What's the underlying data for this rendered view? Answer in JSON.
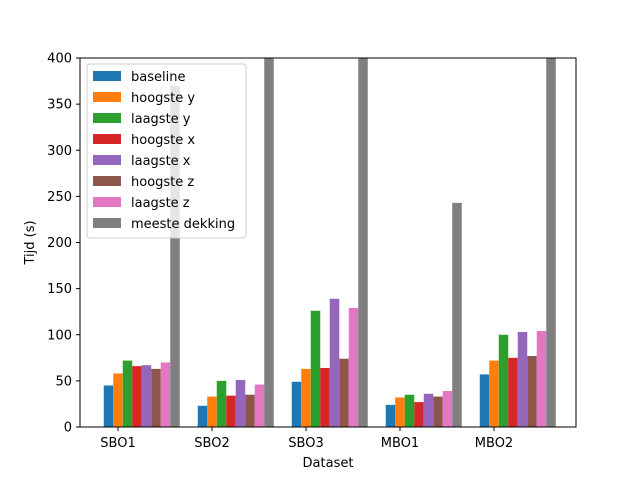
{
  "chart_data": {
    "type": "bar",
    "categories": [
      "SBO1",
      "SBO2",
      "SBO3",
      "MBO1",
      "MBO2"
    ],
    "series": [
      {
        "name": "baseline",
        "color": "#1f77b4",
        "values": [
          45,
          23,
          49,
          24,
          57
        ]
      },
      {
        "name": "hoogste y",
        "color": "#ff7f0e",
        "values": [
          58,
          33,
          63,
          32,
          72
        ]
      },
      {
        "name": "laagste y",
        "color": "#2ca02c",
        "values": [
          72,
          50,
          126,
          35,
          100
        ]
      },
      {
        "name": "hoogste x",
        "color": "#d62728",
        "values": [
          66,
          34,
          64,
          27,
          75
        ]
      },
      {
        "name": "laagste x",
        "color": "#9467bd",
        "values": [
          67,
          51,
          139,
          36,
          103
        ]
      },
      {
        "name": "hoogste z",
        "color": "#8c564b",
        "values": [
          63,
          35,
          74,
          33,
          77
        ]
      },
      {
        "name": "laagste z",
        "color": "#e377c2",
        "values": [
          70,
          46,
          129,
          39,
          104
        ]
      },
      {
        "name": "meeste dekking",
        "color": "#7f7f7f",
        "values": [
          370,
          400,
          400,
          243,
          400
        ]
      }
    ],
    "xlabel": "Dataset",
    "ylabel": "Tijd (s)",
    "ylim": [
      0,
      400
    ],
    "yticks": [
      0,
      50,
      100,
      150,
      200,
      250,
      300,
      350,
      400
    ],
    "legend_position": "top-left",
    "grid": false
  }
}
